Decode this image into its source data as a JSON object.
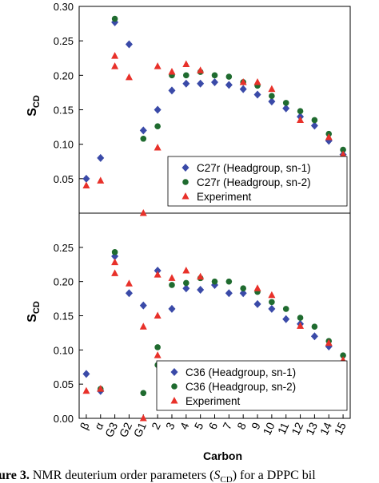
{
  "chart_data": [
    {
      "type": "scatter",
      "ylabel": "S",
      "ylabel_sub": "CD",
      "ylim": [
        0,
        0.3
      ],
      "yticks": [
        0.05,
        {
          "value": 0.1,
          "label": "0.10"
        },
        0.15,
        {
          "value": 0.2,
          "label": "0.20"
        },
        0.25,
        {
          "value": 0.3,
          "label": "0.30"
        }
      ],
      "legend": "lower right",
      "series": [
        {
          "name": "C27r (Headgroup, sn-1)",
          "marker": "diamond",
          "color": "#3a4aa8",
          "values": [
            0.05,
            0.08,
            0.277,
            0.245,
            0.12,
            0.15,
            0.178,
            0.188,
            0.188,
            0.19,
            0.186,
            0.18,
            0.172,
            0.162,
            0.152,
            0.14,
            0.127,
            0.105,
            0.085
          ]
        },
        {
          "name": "C27r (Headgroup, sn-2)",
          "marker": "circle",
          "color": "#1f6b2f",
          "values": [
            null,
            null,
            0.282,
            null,
            0.108,
            0.126,
            0.2,
            0.2,
            0.205,
            0.2,
            0.198,
            0.19,
            0.185,
            0.17,
            0.16,
            0.148,
            0.135,
            0.115,
            0.092
          ]
        },
        {
          "name": "Experiment",
          "marker": "triangle",
          "color": "#e8312a",
          "values": [
            0.04,
            0.047,
            [
              0.228,
              0.213
            ],
            0.197,
            0.0,
            [
              0.213,
              0.095
            ],
            0.205,
            0.216,
            0.207,
            null,
            null,
            0.19,
            0.19,
            0.18,
            null,
            0.135,
            null,
            0.11,
            0.085
          ]
        }
      ]
    },
    {
      "type": "scatter",
      "ylabel": "S",
      "ylabel_sub": "CD",
      "xlabel": "Carbon",
      "categories": [
        "β",
        "α",
        "G3",
        "G2",
        "G1",
        "2",
        "3",
        "4",
        "5",
        "6",
        "7",
        "8",
        "9",
        "10",
        "11",
        "12",
        "13",
        "14",
        "15"
      ],
      "ylim": [
        0,
        0.3
      ],
      "yticks": [
        {
          "value": 0,
          "label": "0.00"
        },
        0.05,
        {
          "value": 0.1,
          "label": "0.10"
        },
        0.15,
        {
          "value": 0.2,
          "label": "0.20"
        },
        0.25
      ],
      "legend": "lower right",
      "series": [
        {
          "name": "C36 (Headgroup, sn-1)",
          "marker": "diamond",
          "color": "#3a4aa8",
          "values": [
            0.065,
            0.04,
            0.237,
            0.183,
            0.165,
            0.216,
            0.16,
            0.19,
            0.188,
            0.195,
            0.183,
            0.183,
            0.167,
            0.16,
            0.145,
            0.138,
            0.12,
            0.105,
            0.078
          ]
        },
        {
          "name": "C36 (Headgroup, sn-2)",
          "marker": "circle",
          "color": "#1f6b2f",
          "values": [
            null,
            0.043,
            0.243,
            null,
            0.037,
            [
              0.104,
              0.078
            ],
            0.195,
            0.198,
            0.205,
            0.2,
            0.2,
            0.19,
            0.185,
            0.17,
            0.16,
            0.147,
            0.134,
            0.113,
            0.092
          ]
        },
        {
          "name": "Experiment",
          "marker": "triangle",
          "color": "#e8312a",
          "values": [
            0.04,
            0.043,
            [
              0.228,
              0.212
            ],
            0.197,
            [
              0.134,
              0.0
            ],
            [
              0.21,
              0.15,
              0.092
            ],
            0.205,
            0.216,
            0.207,
            null,
            null,
            null,
            0.19,
            0.18,
            null,
            0.135,
            null,
            0.11,
            0.085
          ]
        }
      ]
    }
  ],
  "caption": [
    "ure 3.",
    "  NMR deuterium order parameters (",
    "S",
    "CD",
    ") for a DPPC bil"
  ]
}
